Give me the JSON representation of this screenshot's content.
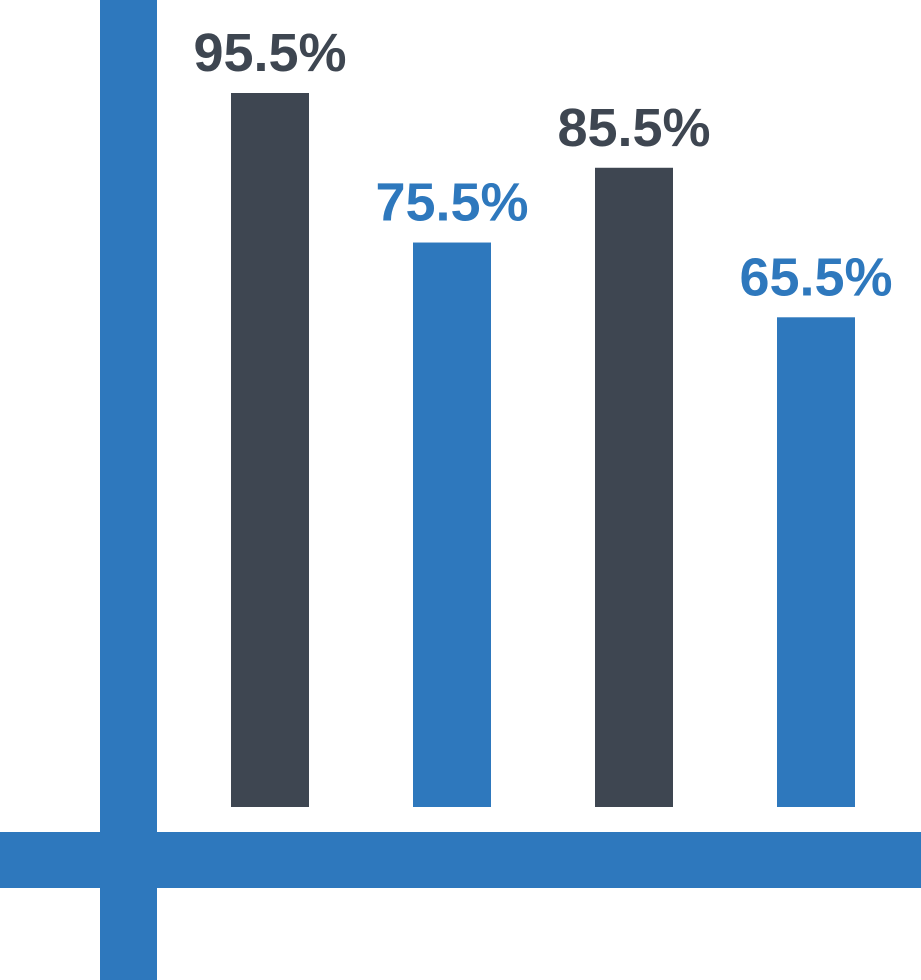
{
  "colors": {
    "axis": "#2e78bd",
    "dark": "#3e4651",
    "blue": "#2e78bd"
  },
  "chart_data": {
    "type": "bar",
    "categories": [
      "",
      "",
      "",
      ""
    ],
    "values": [
      95.5,
      75.5,
      85.5,
      65.5
    ],
    "labels": [
      "95.5%",
      "75.5%",
      "85.5%",
      "65.5%"
    ],
    "bar_colors": [
      "dark",
      "blue",
      "dark",
      "blue"
    ],
    "title": "",
    "xlabel": "",
    "ylabel": "",
    "ylim": [
      0,
      100
    ],
    "grid": false,
    "legend": "none"
  }
}
